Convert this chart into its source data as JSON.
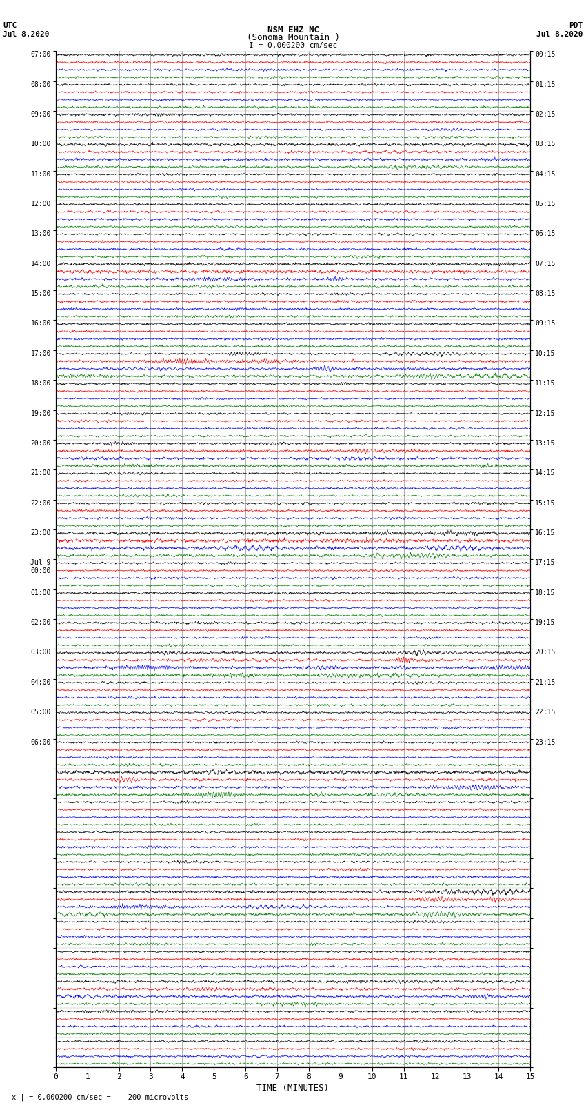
{
  "title_line1": "NSM EHZ NC",
  "title_line2": "(Sonoma Mountain )",
  "scale_label": "I = 0.000200 cm/sec",
  "left_label_top": "UTC",
  "left_label_date": "Jul 8,2020",
  "right_label_top": "PDT",
  "right_label_date": "Jul 8,2020",
  "xlabel": "TIME (MINUTES)",
  "footer": "x | = 0.000200 cm/sec =    200 microvolts",
  "n_rows": 34,
  "traces_per_row": 4,
  "trace_colors": [
    "black",
    "red",
    "blue",
    "green"
  ],
  "x_min": 0,
  "x_max": 15,
  "x_ticks": [
    0,
    1,
    2,
    3,
    4,
    5,
    6,
    7,
    8,
    9,
    10,
    11,
    12,
    13,
    14,
    15
  ],
  "left_utc_labels": [
    "07:00",
    "08:00",
    "09:00",
    "10:00",
    "11:00",
    "12:00",
    "13:00",
    "14:00",
    "15:00",
    "16:00",
    "17:00",
    "18:00",
    "19:00",
    "20:00",
    "21:00",
    "22:00",
    "23:00",
    "Jul 9\n00:00",
    "01:00",
    "02:00",
    "03:00",
    "04:00",
    "05:00",
    "06:00",
    "",
    "",
    "",
    "",
    "",
    "",
    "",
    "",
    "",
    "",
    ""
  ],
  "right_pdt_labels": [
    "00:15",
    "01:15",
    "02:15",
    "03:15",
    "04:15",
    "05:15",
    "06:15",
    "07:15",
    "08:15",
    "09:15",
    "10:15",
    "11:15",
    "12:15",
    "13:15",
    "14:15",
    "15:15",
    "16:15",
    "17:15",
    "18:15",
    "19:15",
    "20:15",
    "21:15",
    "22:15",
    "23:15",
    "",
    "",
    "",
    "",
    "",
    "",
    "",
    "",
    "",
    "",
    ""
  ],
  "bg_color": "white",
  "grid_color": "#777777",
  "noise_base": 0.08,
  "large_event_rows": [
    10,
    16,
    20,
    24,
    28
  ],
  "medium_event_rows": [
    3,
    7,
    13,
    31
  ]
}
